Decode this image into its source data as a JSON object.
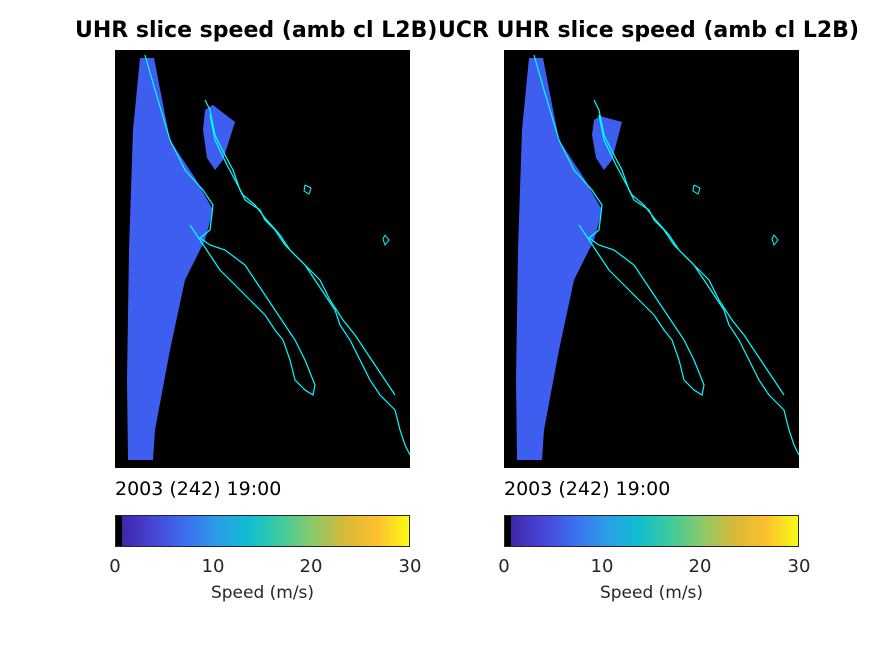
{
  "figure": {
    "panels": [
      {
        "title": "UHR slice speed (amb cl L2B)",
        "date_label": "2003 (242) 19:00",
        "colorbar_label": "Speed (m/s)",
        "colorbar_ticks": [
          "0",
          "10",
          "20",
          "30"
        ]
      },
      {
        "title": "UCR UHR slice speed (amb cl L2B)",
        "date_label": "2003 (242) 19:00",
        "colorbar_label": "Speed (m/s)",
        "colorbar_ticks": [
          "0",
          "10",
          "20",
          "30"
        ]
      }
    ]
  },
  "colors": {
    "background": "#000000",
    "coastline": "#00ffff",
    "swath_fill": "#3e5ef0",
    "colormap": [
      "#000000",
      "#3e26a8",
      "#4745d6",
      "#3c6ff0",
      "#2b9de8",
      "#10bed0",
      "#3fcb9c",
      "#8bc96a",
      "#d8b938",
      "#fcc02f",
      "#f9fb14"
    ]
  },
  "chart_data": [
    {
      "type": "heatmap",
      "title": "UHR slice speed (amb cl L2B)",
      "colorbar": {
        "label": "Speed (m/s)",
        "range": [
          0,
          30
        ],
        "ticks": [
          0,
          10,
          20,
          30
        ]
      },
      "dominant_value_range": [
        6,
        9
      ]
    },
    {
      "type": "heatmap",
      "title": "UCR UHR slice speed (amb cl L2B)",
      "colorbar": {
        "label": "Speed (m/s)",
        "range": [
          0,
          30
        ],
        "ticks": [
          0,
          10,
          20,
          30
        ]
      },
      "dominant_value_range": [
        6,
        9
      ]
    }
  ]
}
